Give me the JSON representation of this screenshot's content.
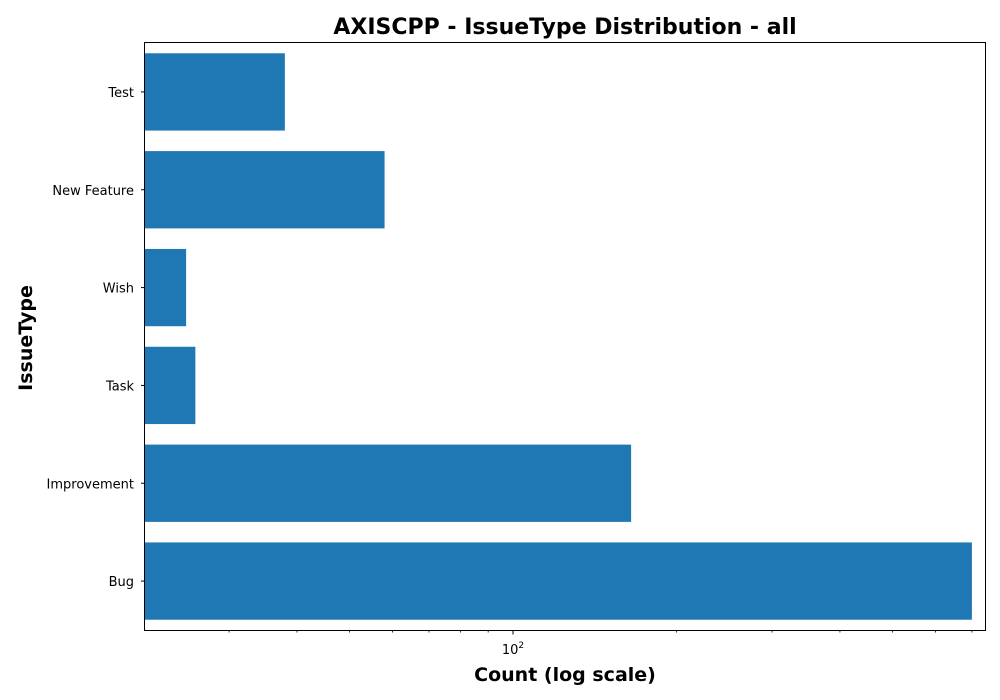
{
  "chart_data": {
    "type": "bar",
    "orientation": "horizontal",
    "title": "AXISCPP - IssueType Distribution - all",
    "xlabel": "Count (log scale)",
    "ylabel": "IssueType",
    "x_scale": "log",
    "xlim": [
      21,
      740
    ],
    "x_tick_labels": [
      {
        "base": "10",
        "exponent": "2",
        "value": 100
      }
    ],
    "categories": [
      "Bug",
      "Improvement",
      "Task",
      "Wish",
      "New Feature",
      "Test"
    ],
    "values": [
      700,
      165,
      26,
      25,
      58,
      38
    ],
    "bar_color": "#1f77b4",
    "grid": false,
    "legend": false
  }
}
